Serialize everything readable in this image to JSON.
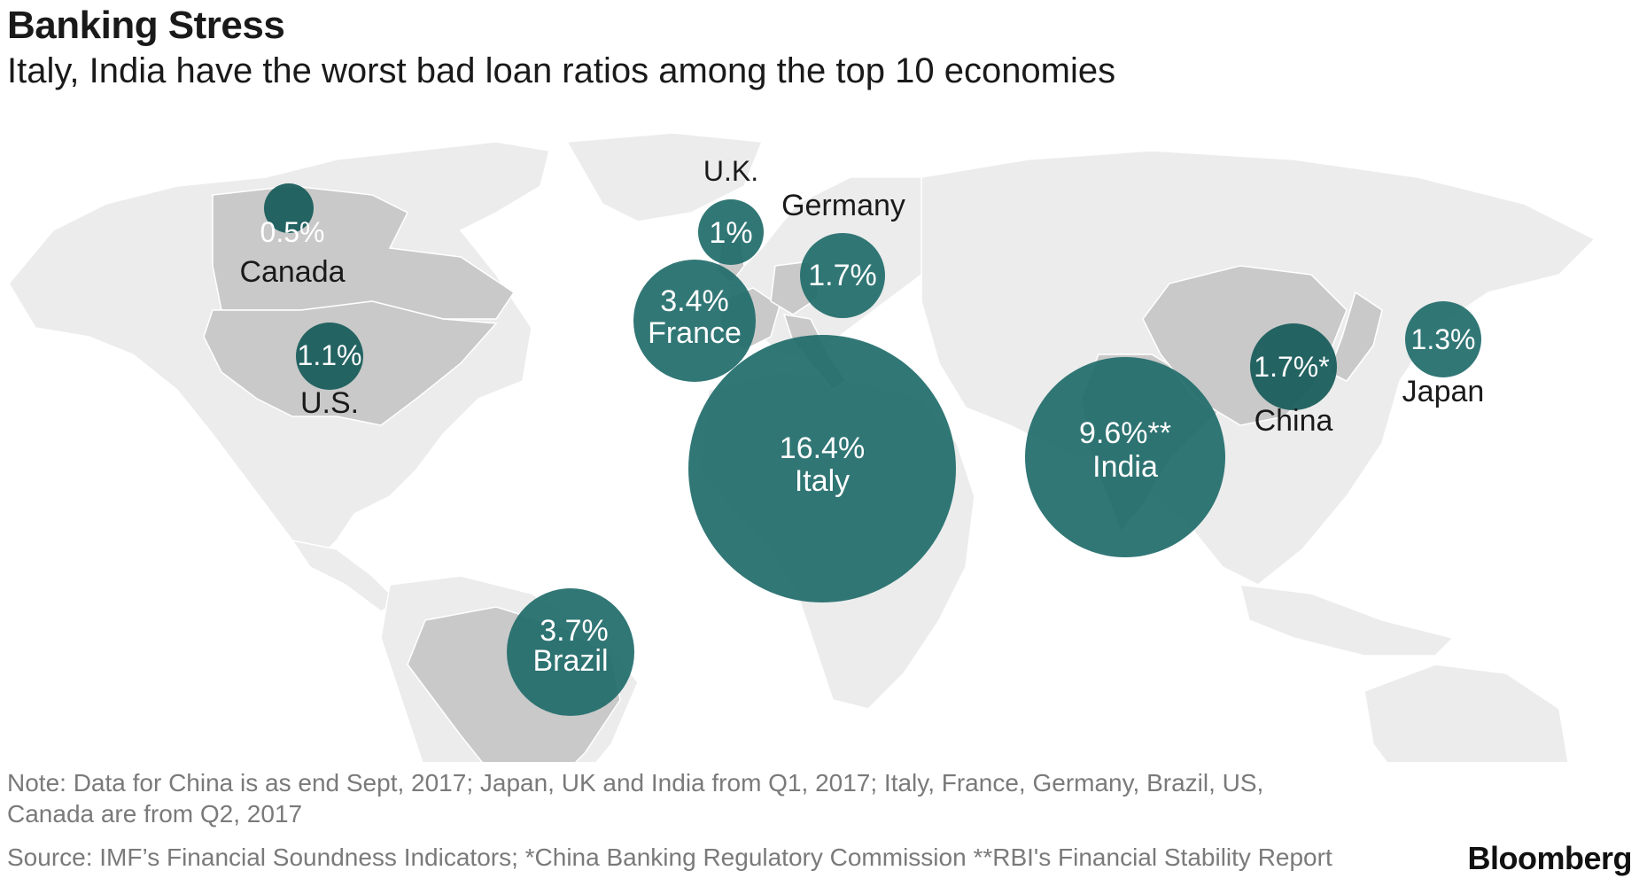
{
  "header": {
    "title": "Banking Stress",
    "subtitle": "Italy, India have the worst bad loan ratios among the top 10 economies"
  },
  "colors": {
    "bubble": "#1f6b6a",
    "highlighted_land": "#c9c9c9",
    "other_land": "#ececec"
  },
  "countries": [
    {
      "id": "canada",
      "name": "Canada",
      "value": 0.5,
      "label": "0.5%"
    },
    {
      "id": "us",
      "name": "U.S.",
      "value": 1.1,
      "label": "1.1%"
    },
    {
      "id": "uk",
      "name": "U.K.",
      "value": 1.0,
      "label": "1%"
    },
    {
      "id": "germany",
      "name": "Germany",
      "value": 1.7,
      "label": "1.7%"
    },
    {
      "id": "france",
      "name": "France",
      "value": 3.4,
      "label": "3.4%"
    },
    {
      "id": "italy",
      "name": "Italy",
      "value": 16.4,
      "label": "16.4%"
    },
    {
      "id": "india",
      "name": "India",
      "value": 9.6,
      "label": "9.6%**"
    },
    {
      "id": "china",
      "name": "China",
      "value": 1.7,
      "label": "1.7%*"
    },
    {
      "id": "japan",
      "name": "Japan",
      "value": 1.3,
      "label": "1.3%"
    },
    {
      "id": "brazil",
      "name": "Brazil",
      "value": 3.7,
      "label": "3.7%"
    }
  ],
  "footer": {
    "note": "Note: Data for China is as end Sept, 2017; Japan, UK and India from Q1, 2017; Italy, France, Germany, Brazil, US, Canada are from Q2, 2017",
    "source": "Source: IMF’s Financial Soundness Indicators; *China Banking Regulatory Commission **RBI's Financial Stability Report",
    "brand": "Bloomberg"
  }
}
